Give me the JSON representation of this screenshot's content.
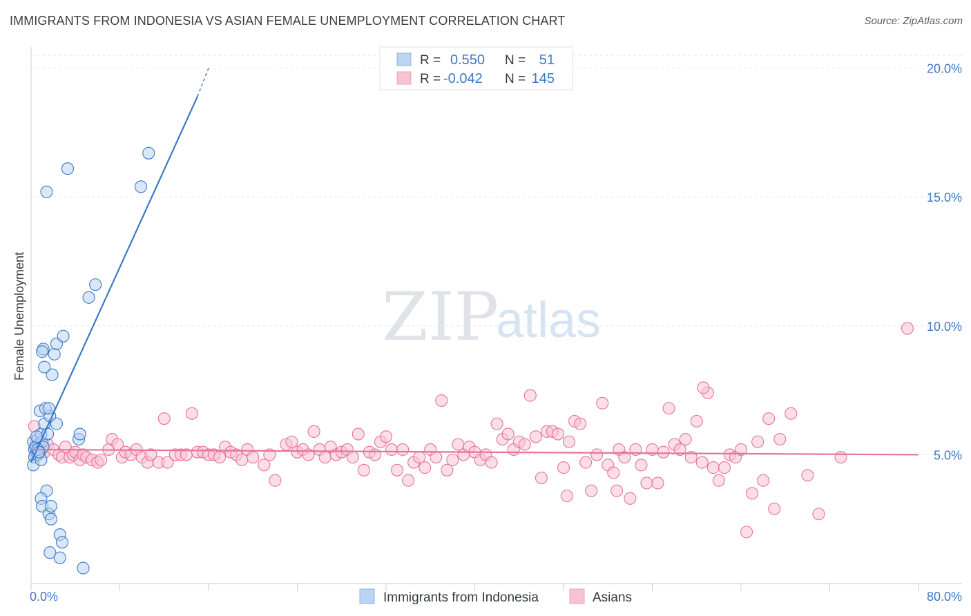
{
  "header": {
    "title": "IMMIGRANTS FROM INDONESIA VS ASIAN FEMALE UNEMPLOYMENT CORRELATION CHART",
    "source": "Source: ZipAtlas.com"
  },
  "watermark": {
    "zip": "ZIP",
    "atlas": "atlas"
  },
  "colors": {
    "blue": "#3b78c8",
    "blue_fill": "#bcd3f2",
    "pink": "#e8729a",
    "pink_fill": "#f7c2d3",
    "grid": "#e3e6ea",
    "axis": "#9aa0a6"
  },
  "chart_data": {
    "type": "scatter",
    "title": "IMMIGRANTS FROM INDONESIA VS ASIAN FEMALE UNEMPLOYMENT CORRELATION CHART",
    "xlabel": "",
    "ylabel": "Female Unemployment",
    "xlim": [
      0,
      80
    ],
    "ylim": [
      0,
      20.5
    ],
    "x_tick_labels": [
      "0.0%",
      "80.0%"
    ],
    "y_ticks": [
      5,
      10,
      15,
      20
    ],
    "y_tick_labels": [
      "5.0%",
      "10.0%",
      "15.0%",
      "20.0%"
    ],
    "legend": [
      {
        "r_label": "R =",
        "r_value": "0.550",
        "n_label": "N =",
        "n_value": "51"
      },
      {
        "r_label": "R =",
        "r_value": "-0.042",
        "n_label": "N =",
        "n_value": "145"
      }
    ],
    "series": [
      {
        "name": "Immigrants from Indonesia",
        "color": "#3b78c8",
        "trend": {
          "x": [
            0,
            15
          ],
          "y": [
            4.7,
            18.9
          ],
          "dashed_to": [
            16,
            20.0
          ]
        },
        "points": [
          [
            0.2,
            5.5
          ],
          [
            0.3,
            5.2
          ],
          [
            0.4,
            5.0
          ],
          [
            0.5,
            5.3
          ],
          [
            0.3,
            4.9
          ],
          [
            0.6,
            5.6
          ],
          [
            0.2,
            4.6
          ],
          [
            0.7,
            5.4
          ],
          [
            0.8,
            5.1
          ],
          [
            0.4,
            5.3
          ],
          [
            0.9,
            5.8
          ],
          [
            1.0,
            5.5
          ],
          [
            0.6,
            5.0
          ],
          [
            0.5,
            5.7
          ],
          [
            1.1,
            5.3
          ],
          [
            1.2,
            6.2
          ],
          [
            0.9,
            4.8
          ],
          [
            1.5,
            5.8
          ],
          [
            1.7,
            6.5
          ],
          [
            0.8,
            6.7
          ],
          [
            1.3,
            6.8
          ],
          [
            1.6,
            6.8
          ],
          [
            2.3,
            6.2
          ],
          [
            1.9,
            8.1
          ],
          [
            1.2,
            8.4
          ],
          [
            2.1,
            8.9
          ],
          [
            1.1,
            9.1
          ],
          [
            1.0,
            9.0
          ],
          [
            2.3,
            9.3
          ],
          [
            2.9,
            9.6
          ],
          [
            5.2,
            11.1
          ],
          [
            5.8,
            11.6
          ],
          [
            1.4,
            15.2
          ],
          [
            3.3,
            16.1
          ],
          [
            9.9,
            15.4
          ],
          [
            10.6,
            16.7
          ],
          [
            4.3,
            5.6
          ],
          [
            4.4,
            5.8
          ],
          [
            1.4,
            3.6
          ],
          [
            0.9,
            3.3
          ],
          [
            1.0,
            3.0
          ],
          [
            1.6,
            2.7
          ],
          [
            1.8,
            3.0
          ],
          [
            1.8,
            2.5
          ],
          [
            2.6,
            1.9
          ],
          [
            2.8,
            1.6
          ],
          [
            1.7,
            1.2
          ],
          [
            2.6,
            1.0
          ],
          [
            4.7,
            0.6
          ],
          [
            0.6,
            5.2
          ],
          [
            0.7,
            5.1
          ]
        ]
      },
      {
        "name": "Asians",
        "color": "#e8729a",
        "trend": {
          "x": [
            0,
            80
          ],
          "y": [
            5.2,
            5.0
          ]
        },
        "points": [
          [
            0.3,
            6.1
          ],
          [
            0.5,
            5.5
          ],
          [
            0.8,
            5.3
          ],
          [
            1.2,
            5.1
          ],
          [
            1.5,
            5.4
          ],
          [
            2.0,
            5.2
          ],
          [
            2.5,
            5.0
          ],
          [
            2.8,
            4.9
          ],
          [
            3.1,
            5.3
          ],
          [
            3.5,
            4.9
          ],
          [
            3.8,
            5.0
          ],
          [
            4.0,
            5.1
          ],
          [
            4.4,
            4.8
          ],
          [
            4.7,
            5.0
          ],
          [
            5.0,
            4.9
          ],
          [
            5.5,
            4.8
          ],
          [
            6.0,
            4.7
          ],
          [
            6.3,
            4.8
          ],
          [
            7.0,
            5.2
          ],
          [
            7.3,
            5.6
          ],
          [
            7.8,
            5.4
          ],
          [
            8.2,
            4.9
          ],
          [
            8.5,
            5.1
          ],
          [
            9.0,
            5.0
          ],
          [
            9.5,
            5.2
          ],
          [
            10.0,
            4.9
          ],
          [
            10.5,
            4.7
          ],
          [
            10.8,
            5.0
          ],
          [
            11.5,
            4.7
          ],
          [
            12.0,
            6.4
          ],
          [
            12.3,
            4.7
          ],
          [
            13.0,
            5.0
          ],
          [
            13.5,
            5.0
          ],
          [
            14.0,
            5.0
          ],
          [
            14.5,
            6.6
          ],
          [
            15.0,
            5.1
          ],
          [
            15.5,
            5.1
          ],
          [
            16.0,
            5.0
          ],
          [
            16.5,
            5.0
          ],
          [
            17.0,
            4.9
          ],
          [
            17.5,
            5.3
          ],
          [
            18.0,
            5.1
          ],
          [
            18.5,
            5.0
          ],
          [
            19.0,
            4.8
          ],
          [
            19.5,
            5.2
          ],
          [
            20.0,
            4.9
          ],
          [
            21.0,
            4.6
          ],
          [
            21.5,
            5.0
          ],
          [
            22.0,
            4.0
          ],
          [
            23.0,
            5.4
          ],
          [
            23.5,
            5.5
          ],
          [
            24.0,
            5.1
          ],
          [
            24.5,
            5.2
          ],
          [
            25.0,
            5.0
          ],
          [
            25.5,
            5.9
          ],
          [
            26.0,
            5.2
          ],
          [
            26.5,
            4.9
          ],
          [
            27.0,
            5.3
          ],
          [
            27.5,
            5.0
          ],
          [
            28.0,
            5.1
          ],
          [
            28.5,
            5.2
          ],
          [
            29.0,
            4.9
          ],
          [
            29.5,
            5.8
          ],
          [
            30.0,
            4.4
          ],
          [
            30.5,
            5.1
          ],
          [
            31.0,
            5.0
          ],
          [
            31.5,
            5.5
          ],
          [
            32.0,
            5.7
          ],
          [
            32.5,
            5.2
          ],
          [
            33.0,
            4.4
          ],
          [
            33.5,
            5.2
          ],
          [
            34.0,
            4.0
          ],
          [
            34.5,
            4.7
          ],
          [
            35.0,
            4.9
          ],
          [
            35.5,
            4.5
          ],
          [
            36.0,
            5.2
          ],
          [
            36.5,
            4.9
          ],
          [
            37.0,
            7.1
          ],
          [
            37.5,
            4.4
          ],
          [
            38.0,
            4.8
          ],
          [
            38.5,
            5.4
          ],
          [
            39.0,
            5.0
          ],
          [
            39.5,
            5.3
          ],
          [
            40.0,
            5.1
          ],
          [
            40.5,
            4.8
          ],
          [
            41.0,
            5.0
          ],
          [
            41.5,
            4.7
          ],
          [
            42.0,
            6.2
          ],
          [
            42.5,
            5.6
          ],
          [
            43.0,
            5.8
          ],
          [
            43.5,
            5.2
          ],
          [
            44.0,
            5.5
          ],
          [
            44.5,
            5.4
          ],
          [
            45.0,
            7.3
          ],
          [
            45.5,
            5.7
          ],
          [
            46.0,
            4.1
          ],
          [
            46.5,
            5.9
          ],
          [
            47.0,
            5.9
          ],
          [
            47.5,
            5.8
          ],
          [
            48.0,
            4.5
          ],
          [
            48.5,
            5.5
          ],
          [
            49.0,
            6.3
          ],
          [
            49.5,
            6.2
          ],
          [
            50.0,
            4.7
          ],
          [
            50.5,
            3.6
          ],
          [
            51.0,
            5.0
          ],
          [
            51.5,
            7.0
          ],
          [
            52.0,
            4.6
          ],
          [
            52.5,
            4.3
          ],
          [
            53.0,
            5.2
          ],
          [
            53.5,
            4.9
          ],
          [
            54.0,
            3.3
          ],
          [
            54.5,
            5.2
          ],
          [
            55.0,
            4.6
          ],
          [
            55.5,
            3.9
          ],
          [
            56.0,
            5.2
          ],
          [
            56.5,
            3.9
          ],
          [
            57.0,
            5.1
          ],
          [
            57.5,
            6.8
          ],
          [
            58.0,
            5.4
          ],
          [
            58.5,
            5.2
          ],
          [
            59.0,
            5.6
          ],
          [
            59.5,
            4.9
          ],
          [
            60.0,
            6.3
          ],
          [
            60.5,
            4.7
          ],
          [
            61.0,
            7.4
          ],
          [
            61.5,
            4.5
          ],
          [
            62.0,
            4.0
          ],
          [
            62.5,
            4.5
          ],
          [
            63.0,
            5.0
          ],
          [
            63.5,
            4.9
          ],
          [
            64.0,
            5.2
          ],
          [
            64.5,
            2.0
          ],
          [
            65.0,
            3.5
          ],
          [
            65.5,
            5.5
          ],
          [
            66.0,
            4.0
          ],
          [
            66.5,
            6.4
          ],
          [
            67.0,
            2.9
          ],
          [
            67.5,
            5.6
          ],
          [
            68.5,
            6.6
          ],
          [
            70.0,
            4.2
          ],
          [
            71.0,
            2.7
          ],
          [
            73.0,
            4.9
          ],
          [
            79.0,
            9.9
          ],
          [
            52.8,
            3.6
          ],
          [
            48.3,
            3.4
          ],
          [
            60.6,
            7.6
          ]
        ]
      }
    ]
  },
  "bottom_legend": {
    "series1": "Immigrants from Indonesia",
    "series2": "Asians"
  }
}
